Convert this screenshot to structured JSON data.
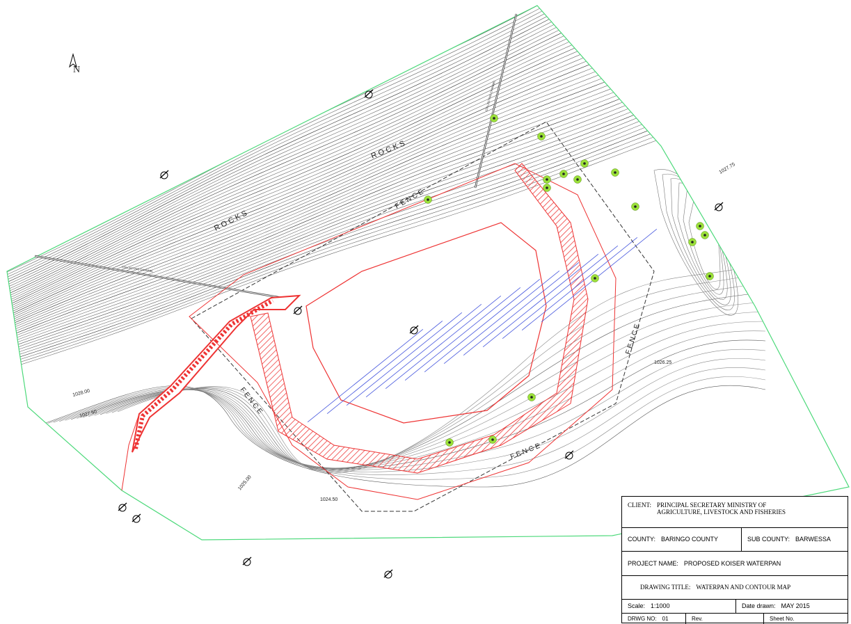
{
  "north": "N",
  "labels": {
    "rocks": [
      "R O C K S",
      "R O C K S"
    ],
    "fence": [
      "F E N C E",
      "F E N C E",
      "F E N C E",
      "F E N C E"
    ],
    "channel": [
      "COLLECTING CHANNEL",
      "COLLECTING CHANNEL"
    ]
  },
  "contour_labels": [
    "1027.75",
    "1026.25",
    "1028.00",
    "1027.50",
    "1025.00",
    "1024.50"
  ],
  "title_block": {
    "client": {
      "label": "CLIENT:",
      "value": "PRINCIPAL SECRETARY MINISTRY OF AGRICULTURE, LIVESTOCK AND FISHERIES"
    },
    "county": {
      "label": "COUNTY:",
      "value": "BARINGO COUNTY"
    },
    "sub_county": {
      "label": "SUB COUNTY:",
      "value": "BARWESSA"
    },
    "project_name": {
      "label": "PROJECT NAME:",
      "value": "PROPOSED KOISER WATERPAN"
    },
    "drawing_title": {
      "label": "DRAWING TITLE:",
      "value": "WATERPAN AND CONTOUR MAP"
    },
    "scale": {
      "label": "Scale:",
      "value": "1:1000"
    },
    "date_drawn": {
      "label": "Date drawn:",
      "value": "MAY 2015"
    },
    "drawing_no": {
      "label": "DRWG NO:",
      "value": "01"
    },
    "rev": "Rev.",
    "sheet_no": "Sheet No."
  }
}
